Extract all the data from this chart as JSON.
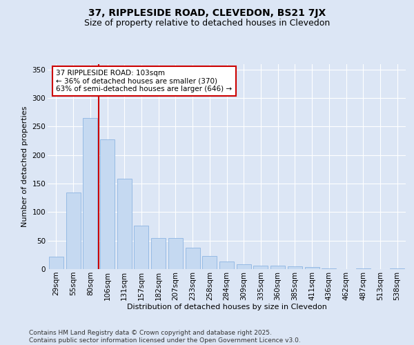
{
  "title": "37, RIPPLESIDE ROAD, CLEVEDON, BS21 7JX",
  "subtitle": "Size of property relative to detached houses in Clevedon",
  "xlabel": "Distribution of detached houses by size in Clevedon",
  "ylabel": "Number of detached properties",
  "categories": [
    "29sqm",
    "55sqm",
    "80sqm",
    "106sqm",
    "131sqm",
    "157sqm",
    "182sqm",
    "207sqm",
    "233sqm",
    "258sqm",
    "284sqm",
    "309sqm",
    "335sqm",
    "360sqm",
    "385sqm",
    "411sqm",
    "436sqm",
    "462sqm",
    "487sqm",
    "513sqm",
    "538sqm"
  ],
  "values": [
    22,
    134,
    265,
    228,
    158,
    76,
    55,
    55,
    37,
    23,
    13,
    9,
    6,
    6,
    5,
    4,
    1,
    0,
    1,
    0,
    1
  ],
  "bar_color": "#c5d9f1",
  "bar_edge_color": "#8db4e2",
  "property_line_color": "#cc0000",
  "annotation_text": "37 RIPPLESIDE ROAD: 103sqm\n← 36% of detached houses are smaller (370)\n63% of semi-detached houses are larger (646) →",
  "annotation_box_color": "#ffffff",
  "annotation_box_edge_color": "#cc0000",
  "ylim": [
    0,
    360
  ],
  "yticks": [
    0,
    50,
    100,
    150,
    200,
    250,
    300,
    350
  ],
  "background_color": "#dce6f5",
  "plot_bg_color": "#dce6f5",
  "footer_text": "Contains HM Land Registry data © Crown copyright and database right 2025.\nContains public sector information licensed under the Open Government Licence v3.0.",
  "title_fontsize": 10,
  "subtitle_fontsize": 9,
  "xlabel_fontsize": 8,
  "ylabel_fontsize": 8,
  "tick_fontsize": 7.5,
  "annotation_fontsize": 7.5,
  "footer_fontsize": 6.5
}
